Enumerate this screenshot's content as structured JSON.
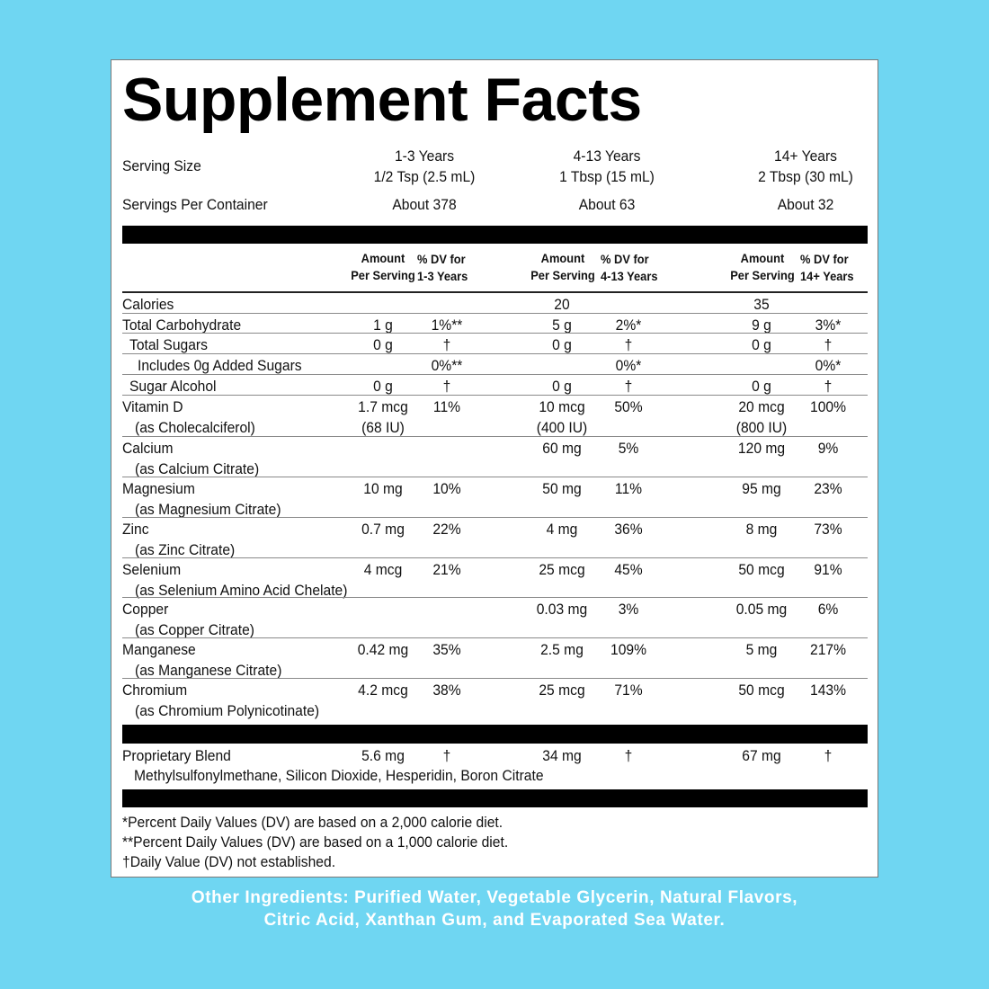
{
  "title": "Supplement Facts",
  "serving": {
    "serving_size_label": "Serving Size",
    "servings_label": "Servings Per Container",
    "groups": [
      {
        "age": "1-3 Years",
        "size": "1/2 Tsp (2.5 mL)",
        "servings": "About 378"
      },
      {
        "age": "4-13 Years",
        "size": "1 Tbsp (15 mL)",
        "servings": "About 63"
      },
      {
        "age": "14+ Years",
        "size": "2 Tbsp (30 mL)",
        "servings": "About 32"
      }
    ]
  },
  "headers": {
    "amount_line1": "Amount",
    "amount_line2": "Per Serving",
    "dv": [
      {
        "line1": "% DV for",
        "line2": "1-3 Years"
      },
      {
        "line1": "% DV for",
        "line2": "4-13 Years"
      },
      {
        "line1": "% DV for",
        "line2": "14+ Years"
      }
    ]
  },
  "nutrients": [
    {
      "name": "Calories",
      "sub": "",
      "indent": 0,
      "vals": [
        "",
        "",
        "20",
        "",
        "35",
        ""
      ]
    },
    {
      "name": "Total Carbohydrate",
      "sub": "",
      "indent": 0,
      "vals": [
        "1 g",
        "1%**",
        "5 g",
        "2%*",
        "9 g",
        "3%*"
      ]
    },
    {
      "name": "Total Sugars",
      "sub": "",
      "indent": 1,
      "vals": [
        "0 g",
        "†",
        "0 g",
        "†",
        "0 g",
        "†"
      ]
    },
    {
      "name": "Includes 0g Added Sugars",
      "sub": "",
      "indent": 2,
      "vals": [
        "",
        "0%**",
        "",
        "0%*",
        "",
        "0%*"
      ]
    },
    {
      "name": "Sugar Alcohol",
      "sub": "",
      "indent": 1,
      "vals": [
        "0 g",
        "†",
        "0 g",
        "†",
        "0 g",
        "†"
      ]
    },
    {
      "name": "Vitamin D",
      "sub": "(as Cholecalciferol)",
      "indent": 0,
      "vals": [
        "1.7 mcg",
        "11%",
        "10 mcg",
        "50%",
        "20 mcg",
        "100%"
      ],
      "vals2": [
        "(68 IU)",
        "",
        "(400 IU)",
        "",
        "(800 IU)",
        ""
      ]
    },
    {
      "name": "Calcium",
      "sub": "(as Calcium Citrate)",
      "indent": 0,
      "vals": [
        "",
        "",
        "60 mg",
        "5%",
        "120 mg",
        "9%"
      ]
    },
    {
      "name": "Magnesium",
      "sub": "(as Magnesium Citrate)",
      "indent": 0,
      "vals": [
        "10 mg",
        "10%",
        "50 mg",
        "11%",
        "95 mg",
        "23%"
      ]
    },
    {
      "name": "Zinc",
      "sub": "(as Zinc Citrate)",
      "indent": 0,
      "vals": [
        "0.7 mg",
        "22%",
        "4 mg",
        "36%",
        "8 mg",
        "73%"
      ]
    },
    {
      "name": "Selenium",
      "sub": "(as Selenium Amino Acid Chelate)",
      "indent": 0,
      "vals": [
        "4 mcg",
        "21%",
        "25 mcg",
        "45%",
        "50 mcg",
        "91%"
      ]
    },
    {
      "name": "Copper",
      "sub": "(as Copper Citrate)",
      "indent": 0,
      "vals": [
        "",
        "",
        "0.03 mg",
        "3%",
        "0.05 mg",
        "6%"
      ]
    },
    {
      "name": "Manganese",
      "sub": "(as Manganese Citrate)",
      "indent": 0,
      "vals": [
        "0.42 mg",
        "35%",
        "2.5 mg",
        "109%",
        "5 mg",
        "217%"
      ]
    },
    {
      "name": "Chromium",
      "sub": "(as Chromium Polynicotinate)",
      "indent": 0,
      "vals": [
        "4.2 mcg",
        "38%",
        "25 mcg",
        "71%",
        "50 mcg",
        "143%"
      ]
    }
  ],
  "blend": {
    "name": "Proprietary Blend",
    "vals": [
      "5.6 mg",
      "†",
      "34 mg",
      "†",
      "67 mg",
      "†"
    ],
    "ingredients": "Methylsulfonylmethane, Silicon Dioxide, Hesperidin, Boron Citrate"
  },
  "footnotes": [
    "*Percent Daily Values (DV) are based on a 2,000 calorie diet.",
    "**Percent Daily Values (DV) are based on a 1,000 calorie diet.",
    "†Daily Value (DV) not established."
  ],
  "other_ingredients": [
    "Other Ingredients: Purified Water, Vegetable Glycerin, Natural Flavors,",
    "Citric Acid, Xanthan Gum, and Evaporated Sea Water."
  ]
}
